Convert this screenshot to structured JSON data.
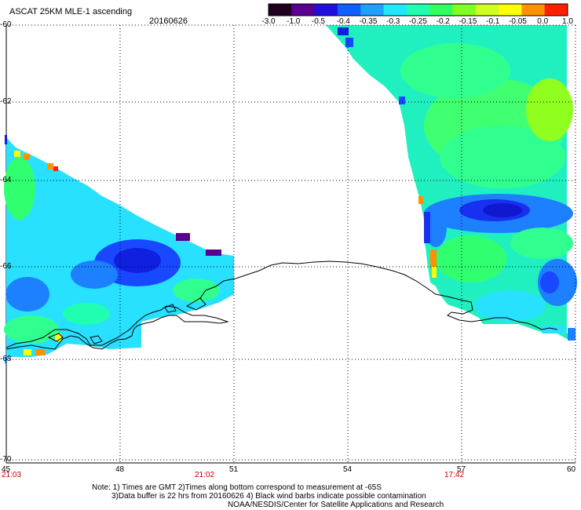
{
  "header": {
    "title": "ASCAT 25KM MLE-1 ascending",
    "date": "20160626"
  },
  "colorbar": {
    "labels": [
      "-3.0",
      "-1.0",
      "-0.5",
      "-0.4",
      "-0.35",
      "-0.3",
      "-0.25",
      "-0.2",
      "-0.15",
      "-0.1",
      "-0.05",
      "0.0",
      "1.0"
    ],
    "colors": [
      "#200020",
      "#5a0090",
      "#2010e0",
      "#1060ff",
      "#20a0ff",
      "#20e8ff",
      "#20ffb0",
      "#30ff60",
      "#80ff20",
      "#d0ff20",
      "#ffff00",
      "#ff9000",
      "#ff2000"
    ]
  },
  "axes": {
    "lat_labels": [
      "-60",
      "-62",
      "-64",
      "-66",
      "-68",
      "-70"
    ],
    "lat_values": [
      -60,
      -62,
      -64,
      -66,
      -68,
      -70
    ],
    "lon_labels": [
      "45",
      "48",
      "51",
      "54",
      "57",
      "60"
    ],
    "lon_values": [
      45,
      48,
      51,
      54,
      57,
      60
    ],
    "times": [
      "21:03",
      "21:02",
      "17:42"
    ]
  },
  "notes": {
    "line1": "Note: 1) Times are GMT 2)Times along bottom correspond to measurement at -65S",
    "line2": "3)Data buffer is 22 hrs from 20160626 4) Black wind barbs indicate possible contamination",
    "line3": "NOAA/NESDIS/Center for Satellite Applications and Research"
  }
}
